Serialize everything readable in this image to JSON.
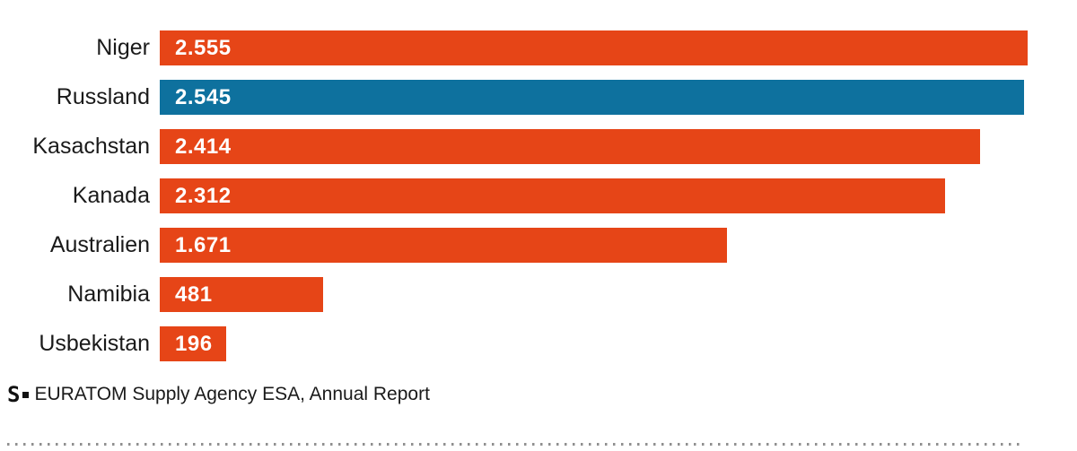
{
  "chart_data": {
    "type": "bar",
    "orientation": "horizontal",
    "title": "",
    "xlabel": "",
    "ylabel": "",
    "grid": false,
    "legend": false,
    "xlim": [
      0,
      2555
    ],
    "categories": [
      "Niger",
      "Russland",
      "Kasachstan",
      "Kanada",
      "Australien",
      "Namibia",
      "Usbekistan"
    ],
    "values": [
      2555,
      2545,
      2414,
      2312,
      1671,
      481,
      196
    ],
    "value_labels": [
      "2.555",
      "2.545",
      "2.414",
      "2.312",
      "1.671",
      "481",
      "196"
    ],
    "highlighted_index": 1,
    "bar_color": "#e64517",
    "highlight_color": "#0e719e"
  },
  "colors": {
    "bar_orange": "#e64517",
    "bar_blue": "#0e719e",
    "label_text": "#1a1a1a",
    "value_text": "#ffffff",
    "dotted_line": "#8f8f8f"
  },
  "source": {
    "logo_glyph": "S",
    "logo_square_icon": "square-bullet",
    "text": "EURATOM Supply Agency ESA, Annual Report"
  }
}
